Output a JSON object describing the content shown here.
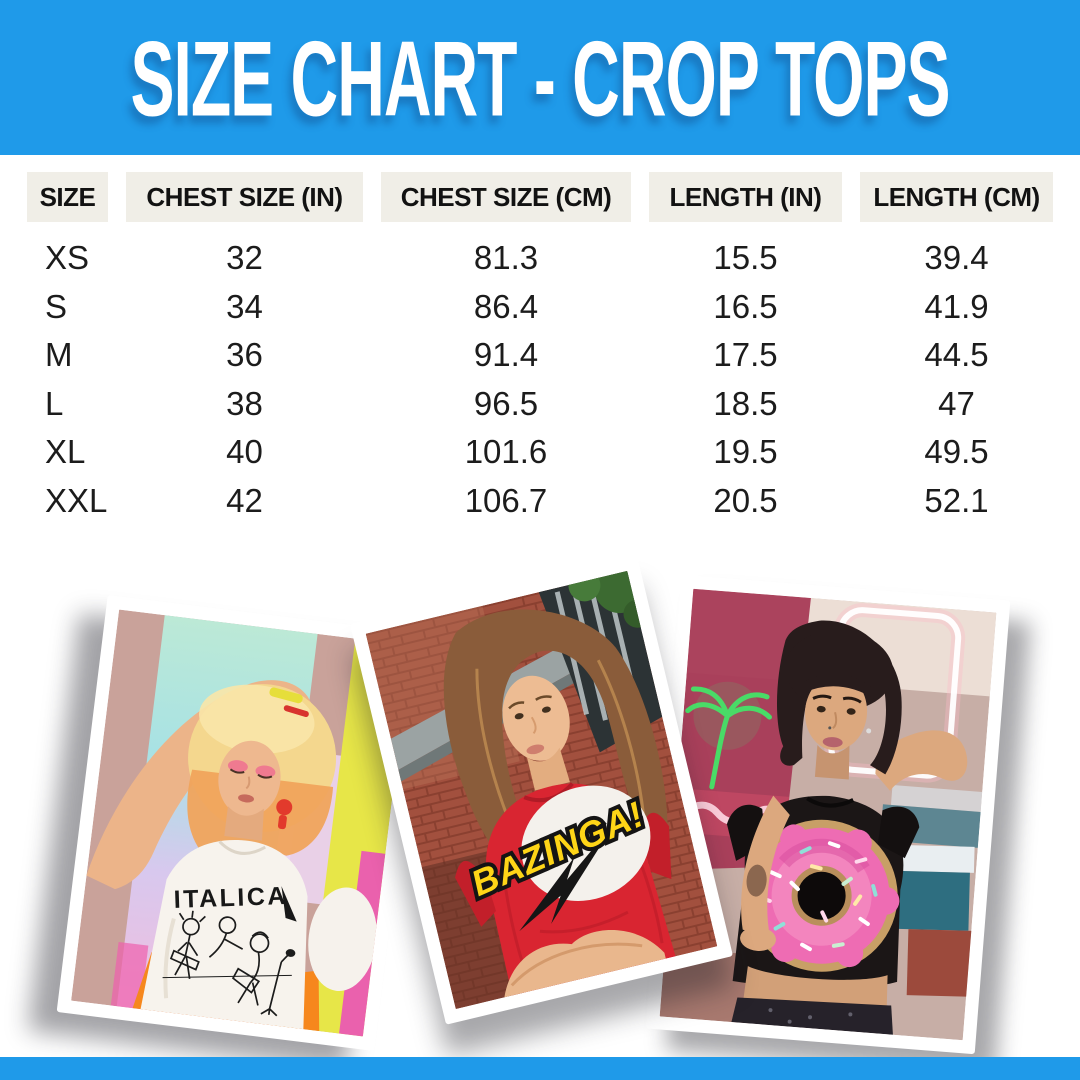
{
  "page": {
    "background": "#ffffff",
    "accent_blue": "#1f9ae9",
    "header_cell_bg": "#f0eee7"
  },
  "banner": {
    "title": "SIZE CHART - CROP TOPS",
    "bg_color": "#1f9ae9",
    "text_color": "#ffffff"
  },
  "chart_data": {
    "type": "table",
    "title": "SIZE CHART - CROP TOPS",
    "columns": [
      "SIZE",
      "CHEST SIZE (IN)",
      "CHEST SIZE (CM)",
      "LENGTH (IN)",
      "LENGTH (CM)"
    ],
    "rows": [
      [
        "XS",
        "32",
        "81.3",
        "15.5",
        "39.4"
      ],
      [
        "S",
        "34",
        "86.4",
        "16.5",
        "41.9"
      ],
      [
        "M",
        "36",
        "91.4",
        "17.5",
        "44.5"
      ],
      [
        "L",
        "38",
        "96.5",
        "18.5",
        "47"
      ],
      [
        "XL",
        "40",
        "101.6",
        "19.5",
        "49.5"
      ],
      [
        "XXL",
        "42",
        "106.7",
        "20.5",
        "52.1"
      ]
    ]
  },
  "photos": [
    {
      "shirt_text": "ITALICA",
      "description": "model with blonde-orange hair in white ITALICA band crop top"
    },
    {
      "shirt_text": "BAZINGA!",
      "description": "model with long brown hair in red BAZINGA! crop top"
    },
    {
      "shirt_text": "",
      "description": "model with dark bob in black crop top with pink sprinkled donut"
    }
  ]
}
